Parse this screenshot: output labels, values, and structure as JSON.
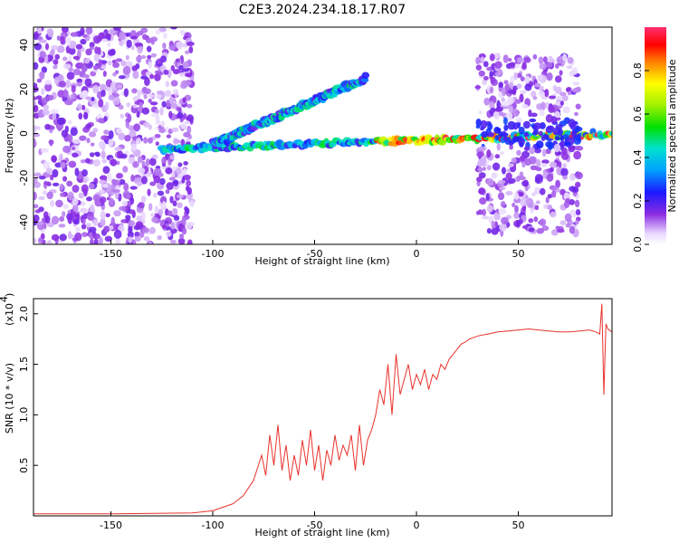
{
  "figure_title": "C2E3.2024.234.18.17.R07",
  "chart_data": [
    {
      "type": "heatmap",
      "xlabel": "Height of straight line (km)",
      "ylabel": "Frequency (Hz)",
      "xlim": [
        -188,
        96
      ],
      "ylim": [
        -50,
        48
      ],
      "x_ticks": [
        "-150",
        "-100",
        "-50",
        "0",
        "50"
      ],
      "y_ticks": [
        "40",
        "20",
        "0",
        "-20",
        "-40"
      ],
      "colorbar": {
        "label": "Normalized spectral amplitude",
        "range": [
          0,
          1
        ],
        "ticks": [
          "0.0",
          "0.2",
          "0.4",
          "0.6",
          "0.8"
        ]
      },
      "features": [
        {
          "x_range": [
            -188,
            -110
          ],
          "frequency_range": [
            -50,
            48
          ],
          "description_value": "broadband noise"
        },
        {
          "x_start": -125,
          "x_end": 96,
          "frequency_start": -7,
          "frequency_end": 0,
          "peak_amplitude": 1.0
        },
        {
          "x_start": -100,
          "x_end": -25,
          "frequency_start": -5,
          "frequency_end": 25,
          "peak_amplitude": 0.5
        },
        {
          "x_range": [
            30,
            80
          ],
          "frequency_range": [
            -45,
            35
          ],
          "description_value": "noise"
        }
      ],
      "grid": false
    },
    {
      "type": "line",
      "xlabel": "Height of straight line (km)",
      "ylabel": "SNR (10 * v/v)",
      "y_multiplier": "(x10",
      "y_multiplier_exp": "4",
      "xlim": [
        -188,
        96
      ],
      "ylim": [
        0,
        2.15
      ],
      "x_ticks": [
        "-150",
        "-100",
        "-50",
        "0",
        "50"
      ],
      "y_ticks": [
        "0.5",
        "1.0",
        "1.5",
        "2.0"
      ],
      "series": [
        {
          "color": "#e8322b",
          "x": [
            -188,
            -150,
            -110,
            -100,
            -90,
            -85,
            -80,
            -76,
            -74,
            -72,
            -70,
            -68,
            -66,
            -64,
            -62,
            -60,
            -58,
            -56,
            -54,
            -52,
            -50,
            -48,
            -46,
            -44,
            -42,
            -40,
            -38,
            -36,
            -34,
            -32,
            -30,
            -28,
            -26,
            -24,
            -22,
            -20,
            -18,
            -16,
            -14,
            -12,
            -10,
            -8,
            -6,
            -4,
            -2,
            0,
            2,
            4,
            6,
            8,
            10,
            12,
            14,
            16,
            18,
            20,
            22,
            24,
            26,
            30,
            35,
            40,
            45,
            50,
            55,
            60,
            65,
            70,
            75,
            80,
            85,
            88,
            90,
            91,
            92,
            93,
            94,
            96
          ],
          "y": [
            0.02,
            0.02,
            0.03,
            0.05,
            0.12,
            0.2,
            0.35,
            0.6,
            0.4,
            0.8,
            0.5,
            0.9,
            0.45,
            0.7,
            0.35,
            0.6,
            0.4,
            0.75,
            0.5,
            0.85,
            0.45,
            0.7,
            0.35,
            0.65,
            0.5,
            0.8,
            0.55,
            0.7,
            0.6,
            0.8,
            0.45,
            0.9,
            0.5,
            0.75,
            0.85,
            1.0,
            1.25,
            1.1,
            1.5,
            1.0,
            1.6,
            1.2,
            1.35,
            1.5,
            1.25,
            1.4,
            1.3,
            1.45,
            1.25,
            1.4,
            1.35,
            1.5,
            1.45,
            1.55,
            1.6,
            1.65,
            1.7,
            1.72,
            1.75,
            1.78,
            1.8,
            1.82,
            1.83,
            1.84,
            1.85,
            1.84,
            1.83,
            1.82,
            1.82,
            1.83,
            1.84,
            1.82,
            1.8,
            2.1,
            1.2,
            1.9,
            1.85,
            1.82
          ]
        }
      ],
      "grid": false
    }
  ]
}
